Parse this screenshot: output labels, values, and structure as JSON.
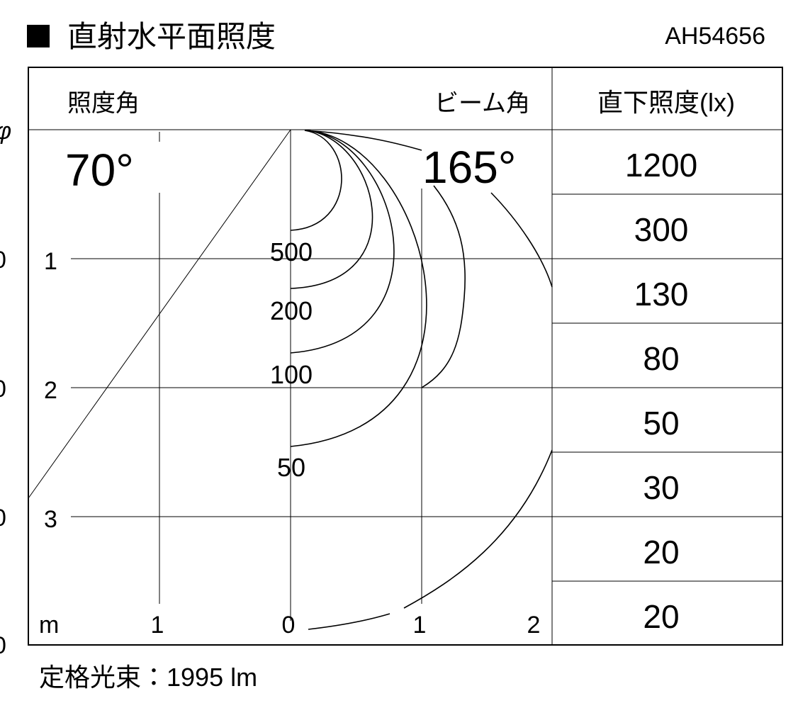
{
  "header": {
    "title": "直射水平面照度",
    "model": "AH54656"
  },
  "columns": {
    "left": "照度角",
    "middle": "ビーム角",
    "right": "直下照度(lx)"
  },
  "angles": {
    "illuminance_angle": "70°",
    "beam_angle": "165°"
  },
  "edge_labels": [
    "φ",
    "0",
    "0",
    "0",
    "0"
  ],
  "y_axis_labels": [
    "1",
    "2",
    "3"
  ],
  "x_axis_labels": [
    "m",
    "1",
    "0",
    "1",
    "2"
  ],
  "contour_labels": [
    "500",
    "200",
    "100",
    "50"
  ],
  "table": {
    "rows": [
      1200,
      300,
      130,
      80,
      50,
      30,
      20,
      20
    ]
  },
  "footer": "定格光束：1995 lm"
}
